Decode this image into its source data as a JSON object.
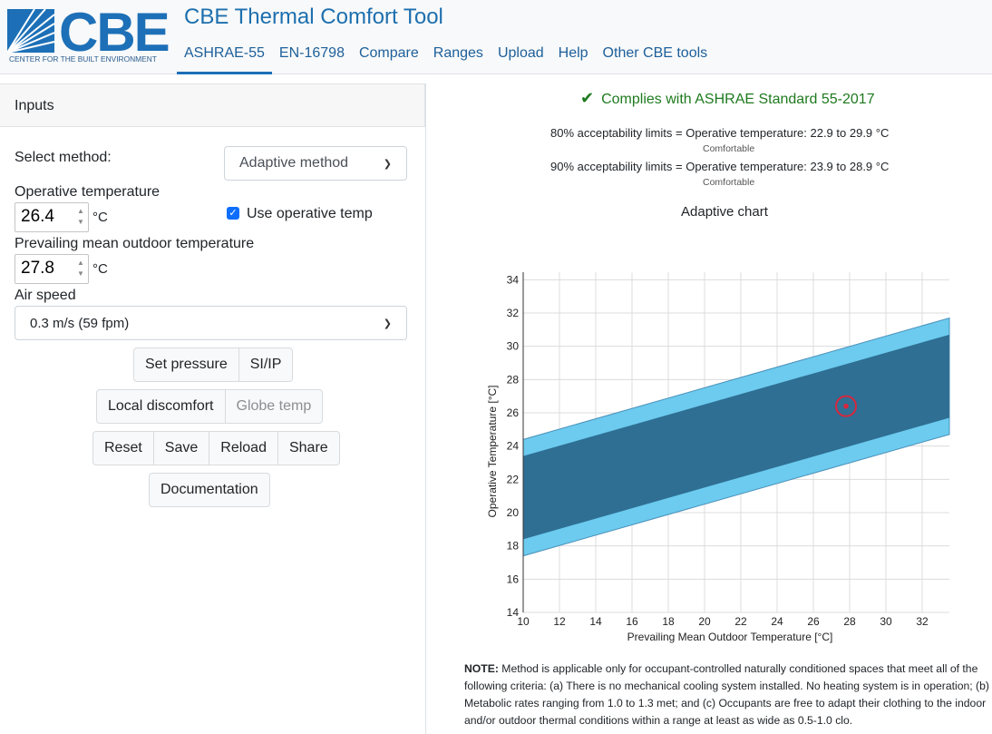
{
  "header": {
    "logo_text": "CBE",
    "logo_sub": "CENTER FOR THE BUILT ENVIRONMENT",
    "title": "CBE Thermal Comfort Tool",
    "nav": [
      "ASHRAE-55",
      "EN-16798",
      "Compare",
      "Ranges",
      "Upload",
      "Help",
      "Other CBE tools"
    ],
    "active_nav": "ASHRAE-55"
  },
  "inputs": {
    "panel_title": "Inputs",
    "method_label": "Select method:",
    "method_value": "Adaptive method",
    "op_temp_label": "Operative temperature",
    "op_temp_value": "26.4",
    "op_temp_unit": "°C",
    "use_op_temp_label": "Use operative temp",
    "use_op_temp_checked": true,
    "outdoor_label": "Prevailing mean outdoor temperature",
    "outdoor_value": "27.8",
    "outdoor_unit": "°C",
    "air_speed_label": "Air speed",
    "air_speed_value": "0.3 m/s (59 fpm)"
  },
  "buttons": {
    "set_pressure": "Set pressure",
    "si_ip": "SI/IP",
    "local_discomfort": "Local discomfort",
    "globe_temp": "Globe temp",
    "reset": "Reset",
    "save": "Save",
    "reload": "Reload",
    "share": "Share",
    "documentation": "Documentation"
  },
  "results": {
    "complies": "Complies with ASHRAE Standard 55-2017",
    "limit80": "80% acceptability limits = Operative temperature: 22.9 to 29.9 °C",
    "limit80_status": "Comfortable",
    "limit90": "90% acceptability limits = Operative temperature: 23.9 to 28.9 °C",
    "limit90_status": "Comfortable"
  },
  "colors": {
    "band80": "#6ccbef",
    "band90": "#2f6f94",
    "marker": "#d7263d",
    "check": "#1e7a1e"
  },
  "chart_data": {
    "type": "area",
    "title": "Adaptive chart",
    "xlabel": "Prevailing Mean Outdoor Temperature [°C]",
    "ylabel": "Operative Temperature [°C]",
    "xlim": [
      10,
      33.5
    ],
    "ylim": [
      14,
      35
    ],
    "x_ticks": [
      10,
      12,
      14,
      16,
      18,
      20,
      22,
      24,
      26,
      28,
      30,
      32
    ],
    "y_ticks": [
      14,
      16,
      18,
      20,
      22,
      24,
      26,
      28,
      30,
      32,
      34
    ],
    "grid": true,
    "series": [
      {
        "name": "80% acceptability",
        "x": [
          10,
          33.5
        ],
        "upper": [
          24.4,
          31.7
        ],
        "lower": [
          17.4,
          24.7
        ]
      },
      {
        "name": "90% acceptability",
        "x": [
          10,
          33.5
        ],
        "upper": [
          23.4,
          30.7
        ],
        "lower": [
          18.4,
          25.7
        ]
      }
    ],
    "point": {
      "x": 27.8,
      "y": 26.4
    }
  },
  "note": {
    "bold": "NOTE:",
    "text": " Method is applicable only for occupant-controlled naturally conditioned spaces that meet all of the following criteria: (a) There is no mechanical cooling system installed. No heating system is in operation; (b) Metabolic rates ranging from 1.0 to 1.3 met; and (c) Occupants are free to adapt their clothing to the indoor and/or outdoor thermal conditions within a range at least as wide as 0.5-1.0 clo."
  }
}
